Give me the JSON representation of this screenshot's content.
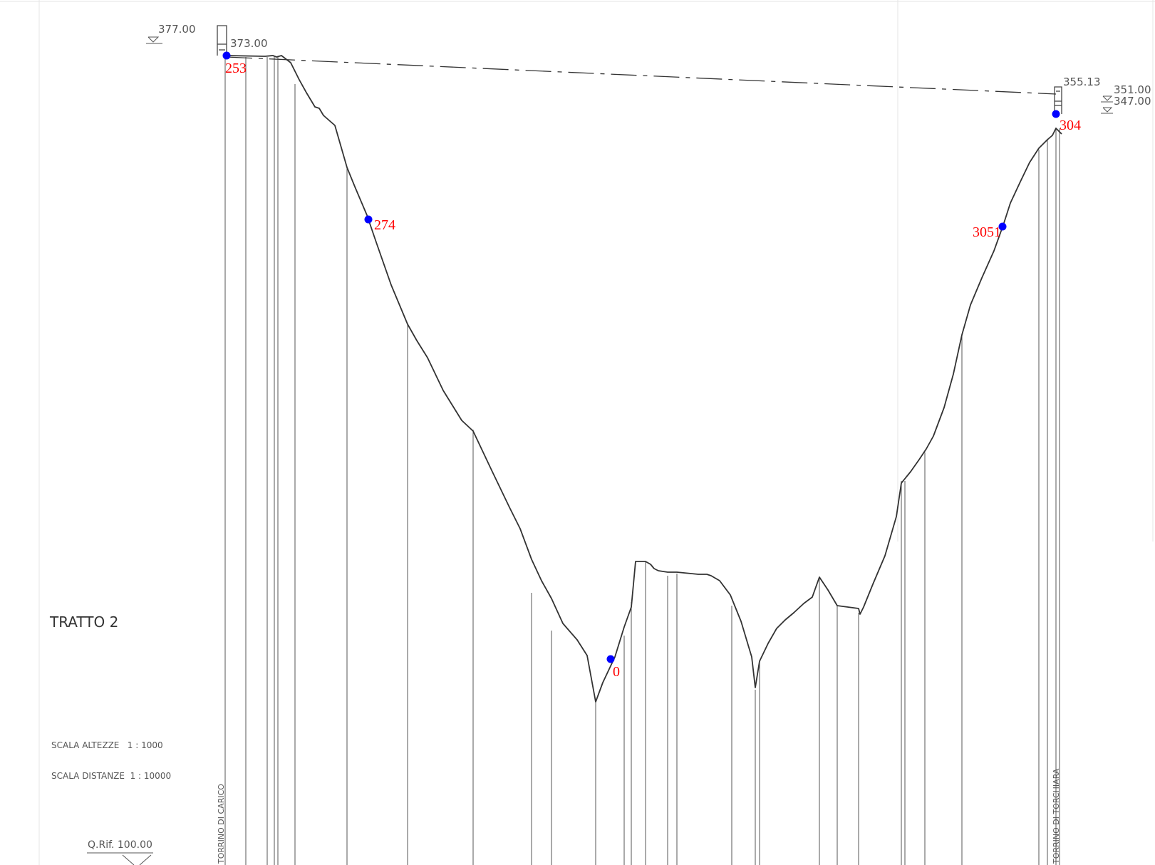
{
  "title": "TRATTO 2",
  "scales": {
    "heights": "SCALA ALTEZZE   1 : 1000",
    "distances": "SCALA DISTANZE  1 : 10000"
  },
  "reference_level": "Q.Rif. 100.00",
  "left_tower": {
    "name": "TORRINO DI CARICO",
    "level_top": "377.00",
    "level_ground": "373.00",
    "point_label": "253"
  },
  "right_tower": {
    "name": "TORRINO DI TORCHIARA",
    "level_top": "355.13",
    "level_a": "351.00",
    "level_b": "347.00",
    "point_label": "304"
  },
  "points": [
    {
      "label": "274"
    },
    {
      "label": "0"
    },
    {
      "label": "3051"
    }
  ],
  "colors": {
    "profile": "#333333",
    "marker": "#0000ff",
    "marker_label": "#ff0000"
  }
}
